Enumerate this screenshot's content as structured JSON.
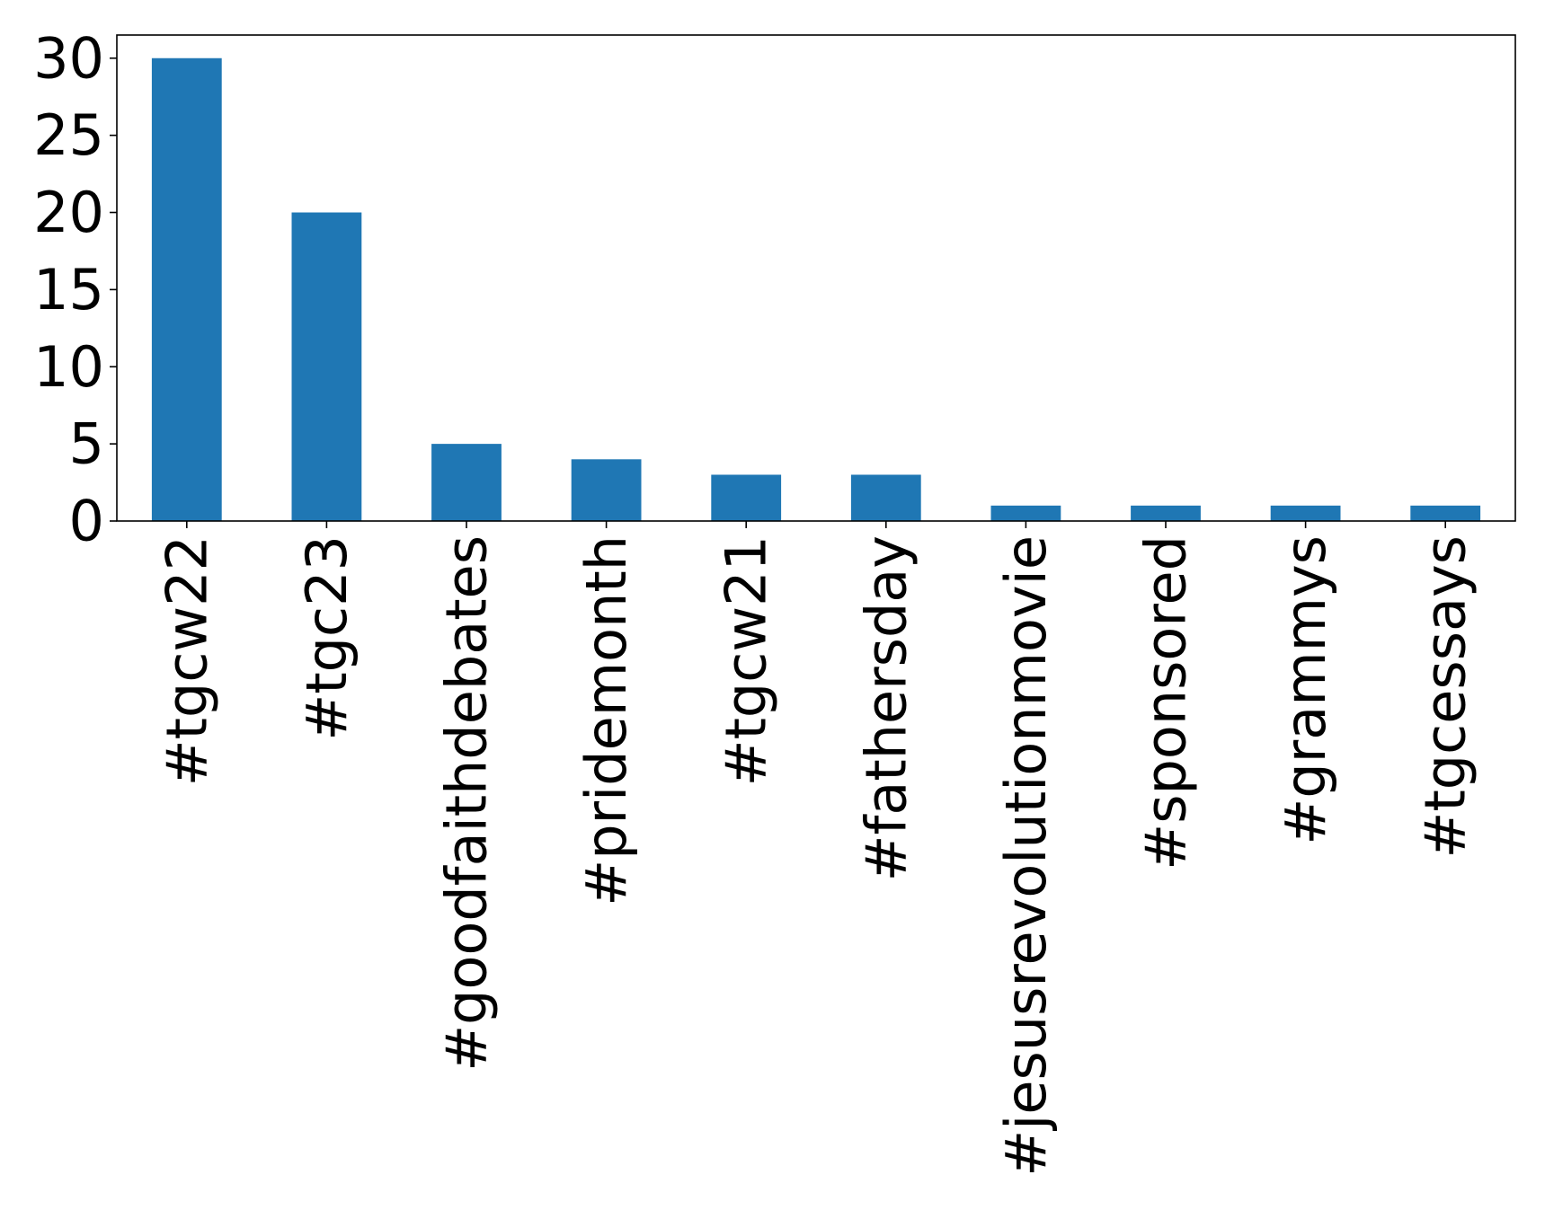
{
  "chart_data": {
    "type": "bar",
    "title": "",
    "xlabel": "",
    "ylabel": "",
    "categories": [
      "#tgcw22",
      "#tgc23",
      "#goodfaithdebates",
      "#pridemonth",
      "#tgcw21",
      "#fathersday",
      "#jesusrevolutionmovie",
      "#sponsored",
      "#grammys",
      "#tgcessays"
    ],
    "values": [
      30,
      20,
      5,
      4,
      3,
      3,
      1,
      1,
      1,
      1
    ],
    "ylim": [
      0,
      31.5
    ],
    "yticks": [
      0,
      5,
      10,
      15,
      20,
      25,
      30
    ],
    "x_tick_rotation": "vertical",
    "grid": false,
    "legend": "none",
    "bar_color": "#1f77b4"
  }
}
